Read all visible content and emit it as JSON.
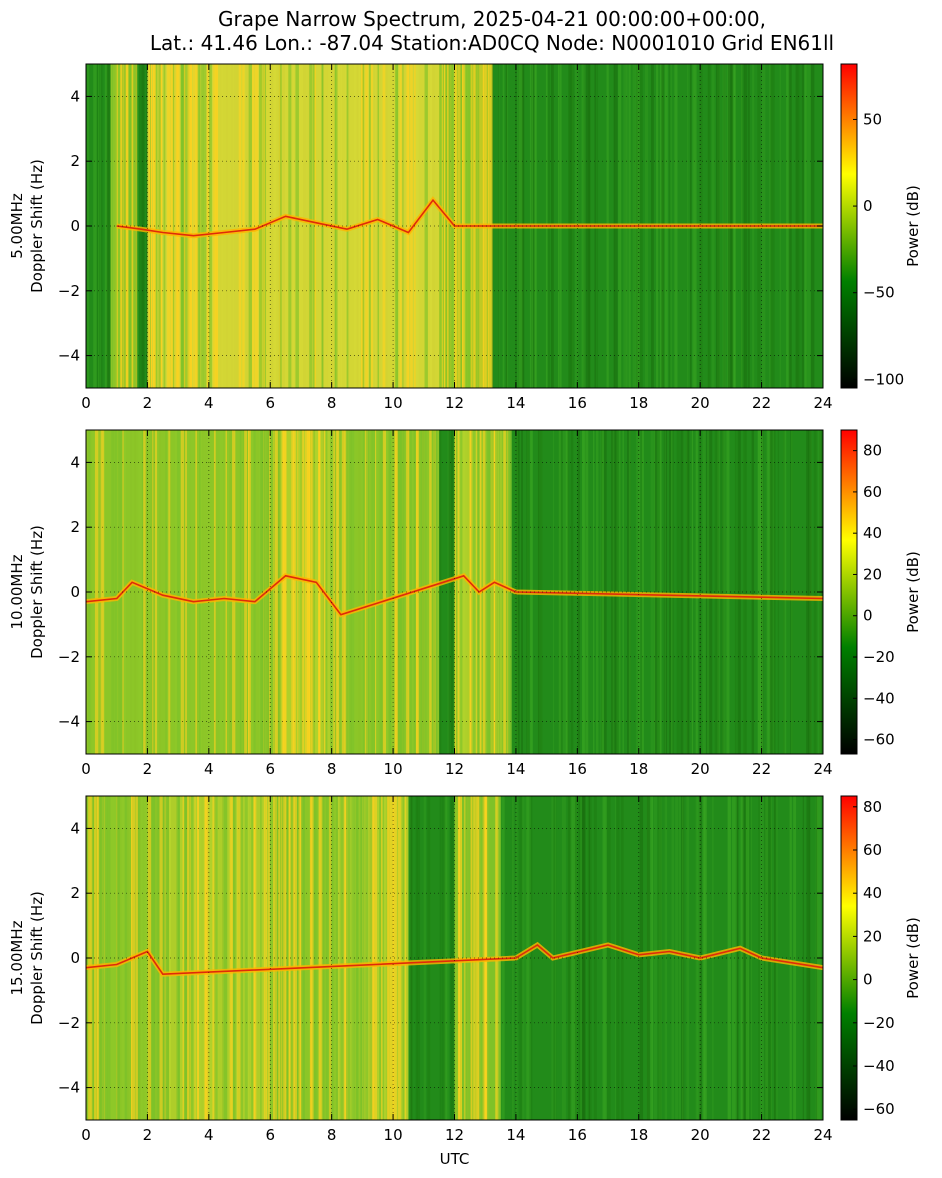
{
  "title_line1": "Grape Narrow Spectrum, 2025-04-21 00:00:00+00:00,",
  "title_line2": "Lat.: 41.46 Lon.: -87.04 Station:AD0CQ Node: N0001010 Grid EN61ll",
  "chart_data": [
    {
      "type": "heatmap",
      "ylabel": [
        "5.00MHz",
        "Doppler Shift (Hz)"
      ],
      "xlabel": "",
      "xlim": [
        0,
        24
      ],
      "ylim": [
        -5,
        5
      ],
      "x_ticks": [
        "0",
        "2",
        "4",
        "6",
        "8",
        "10",
        "12",
        "14",
        "16",
        "18",
        "20",
        "22",
        "24"
      ],
      "y_ticks": [
        "4",
        "2",
        "0",
        "−2",
        "−4"
      ],
      "grid": true,
      "colorbar": {
        "label": "Power (dB)",
        "range": [
          -105,
          82
        ],
        "ticks": [
          "50",
          "0",
          "−50",
          "−100"
        ],
        "tick_values": [
          50,
          0,
          -50,
          -100
        ],
        "colors": [
          "#000000",
          "#008000",
          "#ffff00",
          "#ff0000"
        ]
      },
      "bright_intervals_utc": [
        [
          0.8,
          1.6
        ],
        [
          2.0,
          4.3
        ],
        [
          4.3,
          11.5
        ],
        [
          11.5,
          12.4
        ],
        [
          12.4,
          13.2
        ]
      ],
      "ridge_utc_to_hz": [
        [
          1.0,
          0.0
        ],
        [
          1.8,
          -0.1
        ],
        [
          2.5,
          -0.2
        ],
        [
          3.5,
          -0.3
        ],
        [
          4.5,
          -0.2
        ],
        [
          5.5,
          -0.1
        ],
        [
          6.5,
          0.3
        ],
        [
          7.5,
          0.1
        ],
        [
          8.5,
          -0.1
        ],
        [
          9.5,
          0.2
        ],
        [
          10.5,
          -0.2
        ],
        [
          11.3,
          0.8
        ],
        [
          12.0,
          0.0
        ],
        [
          24.0,
          0.0
        ]
      ]
    },
    {
      "type": "heatmap",
      "ylabel": [
        "10.00MHz",
        "Doppler Shift (Hz)"
      ],
      "xlabel": "",
      "xlim": [
        0,
        24
      ],
      "ylim": [
        -5,
        5
      ],
      "x_ticks": [
        "0",
        "2",
        "4",
        "6",
        "8",
        "10",
        "12",
        "14",
        "16",
        "18",
        "20",
        "22",
        "24"
      ],
      "y_ticks": [
        "4",
        "2",
        "0",
        "−2",
        "−4"
      ],
      "grid": true,
      "colorbar": {
        "label": "Power (dB)",
        "range": [
          -67,
          90
        ],
        "ticks": [
          "80",
          "60",
          "40",
          "20",
          "0",
          "−20",
          "−40",
          "−60"
        ],
        "tick_values": [
          80,
          60,
          40,
          20,
          0,
          -20,
          -40,
          -60
        ],
        "colors": [
          "#000000",
          "#008000",
          "#ffff00",
          "#ff0000"
        ]
      },
      "bright_intervals_utc": [
        [
          0.0,
          6.0
        ],
        [
          6.0,
          8.3
        ],
        [
          8.3,
          11.5
        ],
        [
          12.0,
          13.8
        ]
      ],
      "ridge_utc_to_hz": [
        [
          0.0,
          -0.3
        ],
        [
          1.0,
          -0.2
        ],
        [
          1.5,
          0.3
        ],
        [
          2.5,
          -0.1
        ],
        [
          3.5,
          -0.3
        ],
        [
          4.5,
          -0.2
        ],
        [
          5.5,
          -0.3
        ],
        [
          6.5,
          0.5
        ],
        [
          7.5,
          0.3
        ],
        [
          8.3,
          -0.7
        ],
        [
          12.3,
          0.5
        ],
        [
          12.8,
          0.0
        ],
        [
          13.3,
          0.3
        ],
        [
          14.0,
          0.0
        ],
        [
          24.0,
          -0.2
        ]
      ]
    },
    {
      "type": "heatmap",
      "ylabel": [
        "15.00MHz",
        "Doppler Shift (Hz)"
      ],
      "xlabel": "UTC",
      "xlim": [
        0,
        24
      ],
      "ylim": [
        -5,
        5
      ],
      "x_ticks": [
        "0",
        "2",
        "4",
        "6",
        "8",
        "10",
        "12",
        "14",
        "16",
        "18",
        "20",
        "22",
        "24"
      ],
      "y_ticks": [
        "4",
        "2",
        "0",
        "−2",
        "−4"
      ],
      "grid": true,
      "colorbar": {
        "label": "Power (dB)",
        "range": [
          -65,
          85
        ],
        "ticks": [
          "80",
          "60",
          "40",
          "20",
          "0",
          "−20",
          "−40",
          "−60"
        ],
        "tick_values": [
          80,
          60,
          40,
          20,
          0,
          -20,
          -40,
          -60
        ],
        "colors": [
          "#000000",
          "#008000",
          "#ffff00",
          "#ff0000"
        ]
      },
      "bright_intervals_utc": [
        [
          0.0,
          2.7
        ],
        [
          2.7,
          6.0
        ],
        [
          6.0,
          8.2
        ],
        [
          8.2,
          10.5
        ],
        [
          12.0,
          13.5
        ]
      ],
      "ridge_utc_to_hz": [
        [
          0.0,
          -0.3
        ],
        [
          1.0,
          -0.2
        ],
        [
          2.0,
          0.2
        ],
        [
          2.5,
          -0.5
        ],
        [
          14.0,
          0.0
        ],
        [
          14.7,
          0.4
        ],
        [
          15.2,
          0.0
        ],
        [
          17.0,
          0.4
        ],
        [
          18.0,
          0.1
        ],
        [
          19.0,
          0.2
        ],
        [
          20.0,
          0.0
        ],
        [
          21.3,
          0.3
        ],
        [
          22.0,
          0.0
        ],
        [
          24.0,
          -0.3
        ]
      ]
    }
  ]
}
